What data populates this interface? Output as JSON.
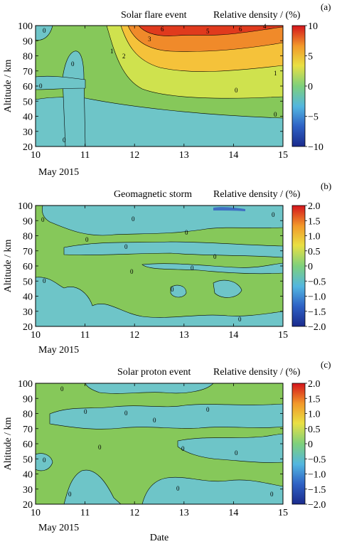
{
  "figure": {
    "xlabel": "Date",
    "date_note": "May 2015"
  },
  "colors": {
    "level_pos_high": "#e03a1d",
    "level_pos_mid": "#f08a2a",
    "level_pos_low": "#f5c23a",
    "level_pos_near": "#cfe24e",
    "level_zero": "#86c85a",
    "level_neg": "#6ec5c8",
    "colorbar_stops": [
      "#1a2a8c",
      "#2f63c6",
      "#53b6e0",
      "#7ed07c",
      "#e9e043",
      "#f29a2a",
      "#d4141c"
    ]
  },
  "chart_data": [
    {
      "type": "heatmap",
      "panel_letter": "(a)",
      "title": "Solar flare event",
      "colorbar_label": "Relative density / (%)",
      "xlabel": "",
      "ylabel": "Altitude / km",
      "x_ticks": [
        "10",
        "11",
        "12",
        "13",
        "14",
        "15"
      ],
      "xlim": [
        10,
        15
      ],
      "y_ticks": [
        "20",
        "30",
        "40",
        "50",
        "60",
        "70",
        "80",
        "90",
        "100"
      ],
      "ylim": [
        20,
        100
      ],
      "colorbar_ticks": [
        "10",
        "5",
        "0",
        "−5",
        "−10"
      ],
      "colorbar_range": [
        -10,
        10
      ],
      "contour_labels": [
        "0",
        "0",
        "0",
        "0",
        "0",
        "0",
        "1",
        "1",
        "2",
        "3",
        "4",
        "5",
        "6",
        "6"
      ]
    },
    {
      "type": "heatmap",
      "panel_letter": "(b)",
      "title": "Geomagnetic storm",
      "colorbar_label": "Relative density / (%)",
      "xlabel": "",
      "ylabel": "Altitude / km",
      "x_ticks": [
        "10",
        "11",
        "12",
        "13",
        "14",
        "15"
      ],
      "xlim": [
        10,
        15
      ],
      "y_ticks": [
        "20",
        "30",
        "40",
        "50",
        "60",
        "70",
        "80",
        "90",
        "100"
      ],
      "ylim": [
        20,
        100
      ],
      "colorbar_ticks": [
        "2.0",
        "1.5",
        "1.0",
        "0.5",
        "0",
        "−0.5",
        "−1.0",
        "−1.5",
        "−2.0"
      ],
      "colorbar_range": [
        -2,
        2
      ],
      "contour_labels": [
        "0",
        "0",
        "0",
        "0",
        "0",
        "0",
        "0",
        "0",
        "0",
        "0",
        "0",
        "0"
      ]
    },
    {
      "type": "heatmap",
      "panel_letter": "(c)",
      "title": "Solar proton event",
      "colorbar_label": "Relative density / (%)",
      "xlabel": "Date",
      "ylabel": "Altitude / km",
      "x_ticks": [
        "10",
        "11",
        "12",
        "13",
        "14",
        "15"
      ],
      "xlim": [
        10,
        15
      ],
      "y_ticks": [
        "20",
        "30",
        "40",
        "50",
        "60",
        "70",
        "80",
        "90",
        "100"
      ],
      "ylim": [
        20,
        100
      ],
      "colorbar_ticks": [
        "2.0",
        "1.5",
        "1.0",
        "0.5",
        "0",
        "−0.5",
        "−1.0",
        "−1.5",
        "−2.0"
      ],
      "colorbar_range": [
        -2,
        2
      ],
      "contour_labels": [
        "0",
        "0",
        "0",
        "0",
        "0",
        "0",
        "0",
        "0",
        "0",
        "0",
        "0",
        "0"
      ]
    }
  ]
}
